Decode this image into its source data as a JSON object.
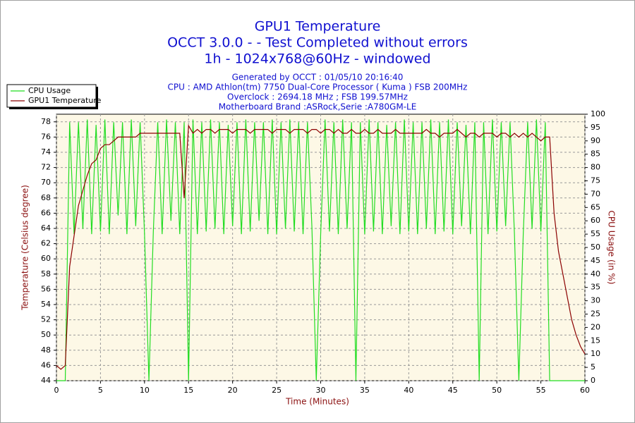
{
  "chart_data": {
    "type": "line",
    "title": [
      "GPU1 Temperature",
      "OCCT 3.0.0 -  - Test Completed without errors",
      "1h - 1024x768@60Hz - windowed"
    ],
    "subtitle": [
      "Generated by OCCT : 01/05/10 20:16:40",
      "CPU : AMD Athlon(tm) 7750 Dual-Core Processor ( Kuma ) FSB 200MHz",
      "Overclock : 2694.18 MHz ; FSB 199.57MHz",
      "Motherboard Brand :ASRock,Serie :A780GM-LE"
    ],
    "x_label": "Time (Minutes)",
    "y_label": "Temperature (Celsius degree)",
    "y2_label": "CPU Usage (in %)",
    "xlim": [
      0,
      60
    ],
    "xticks": [
      0,
      5,
      10,
      15,
      20,
      25,
      30,
      35,
      40,
      45,
      50,
      55,
      60
    ],
    "ylim": [
      44,
      79
    ],
    "yticks": [
      44,
      46,
      48,
      50,
      52,
      54,
      56,
      58,
      60,
      62,
      64,
      66,
      68,
      70,
      72,
      74,
      76,
      78
    ],
    "y2lim": [
      0,
      100
    ],
    "y2ticks": [
      0,
      5,
      10,
      15,
      20,
      25,
      30,
      35,
      40,
      45,
      50,
      55,
      60,
      65,
      70,
      75,
      80,
      85,
      90,
      95,
      100
    ],
    "grid": true,
    "legend": "top-left",
    "x": [
      0,
      0.5,
      1,
      1.5,
      2,
      2.5,
      3,
      3.5,
      4,
      4.5,
      5,
      5.5,
      6,
      6.5,
      7,
      7.5,
      8,
      8.5,
      9,
      9.5,
      10,
      10.5,
      11,
      11.5,
      12,
      12.5,
      13,
      13.5,
      14,
      14.5,
      15,
      15.5,
      16,
      16.5,
      17,
      17.5,
      18,
      18.5,
      19,
      19.5,
      20,
      20.5,
      21,
      21.5,
      22,
      22.5,
      23,
      23.5,
      24,
      24.5,
      25,
      25.5,
      26,
      26.5,
      27,
      27.5,
      28,
      28.5,
      29,
      29.5,
      30,
      30.5,
      31,
      31.5,
      32,
      32.5,
      33,
      33.5,
      34,
      34.5,
      35,
      35.5,
      36,
      36.5,
      37,
      37.5,
      38,
      38.5,
      39,
      39.5,
      40,
      40.5,
      41,
      41.5,
      42,
      42.5,
      43,
      43.5,
      44,
      44.5,
      45,
      45.5,
      46,
      46.5,
      47,
      47.5,
      48,
      48.5,
      49,
      49.5,
      50,
      50.5,
      51,
      51.5,
      52,
      52.5,
      53,
      53.5,
      54,
      54.5,
      55,
      55.5,
      56,
      56.5,
      57,
      57.5,
      58,
      58.5,
      59,
      59.5,
      60
    ],
    "series": [
      {
        "name": "CPU Usage",
        "color": "#22dd22",
        "axis": "y2",
        "values": [
          0,
          0,
          0,
          97,
          55,
          97,
          57,
          98,
          55,
          96,
          56,
          98,
          55,
          97,
          62,
          97,
          55,
          98,
          58,
          97,
          55,
          0,
          56,
          97,
          55,
          98,
          60,
          97,
          55,
          97,
          0,
          98,
          55,
          97,
          56,
          98,
          57,
          97,
          55,
          96,
          58,
          97,
          55,
          98,
          56,
          97,
          60,
          97,
          55,
          98,
          55,
          97,
          57,
          98,
          56,
          97,
          55,
          97,
          58,
          0,
          55,
          98,
          56,
          97,
          55,
          98,
          57,
          97,
          0,
          97,
          55,
          98,
          56,
          97,
          55,
          96,
          58,
          97,
          55,
          98,
          56,
          97,
          55,
          97,
          57,
          98,
          55,
          97,
          56,
          98,
          55,
          97,
          58,
          96,
          55,
          97,
          0,
          97,
          55,
          98,
          56,
          97,
          58,
          97,
          55,
          0,
          55,
          97,
          57,
          98,
          56,
          97,
          0,
          0,
          0,
          0,
          0,
          0,
          0,
          0,
          0
        ]
      },
      {
        "name": "GPU1 Temperature",
        "color": "#8b0000",
        "axis": "y",
        "values": [
          46,
          45.5,
          46,
          59,
          63,
          67,
          69,
          71,
          72.5,
          73,
          74.5,
          75,
          75,
          75.5,
          76,
          76,
          76,
          76,
          76,
          76.5,
          76.5,
          76.5,
          76.5,
          76.5,
          76.5,
          76.5,
          76.5,
          76.5,
          76.5,
          68,
          77.5,
          76.5,
          77,
          76.5,
          77,
          77,
          76.5,
          77,
          77,
          77,
          76.5,
          77,
          77,
          77,
          76.5,
          77,
          77,
          77,
          77,
          76.5,
          77,
          77,
          77,
          76.5,
          77,
          77,
          77,
          76.5,
          77,
          77,
          76.5,
          77,
          77,
          76.5,
          77,
          76.5,
          76.5,
          77,
          76.5,
          76.5,
          77,
          76.5,
          76.5,
          77,
          76.5,
          76.5,
          76.5,
          77,
          76.5,
          76.5,
          76.5,
          76.5,
          76.5,
          76.5,
          77,
          76.5,
          76.5,
          76,
          76.5,
          76.5,
          76.5,
          77,
          76.5,
          76,
          76.5,
          76.5,
          76,
          76.5,
          76.5,
          76.5,
          76,
          76.5,
          76.5,
          76,
          76.5,
          76,
          76.5,
          76,
          76.5,
          76,
          75.5,
          76,
          76,
          66,
          61,
          58,
          55,
          52,
          50,
          48.5,
          47.5
        ]
      }
    ]
  }
}
